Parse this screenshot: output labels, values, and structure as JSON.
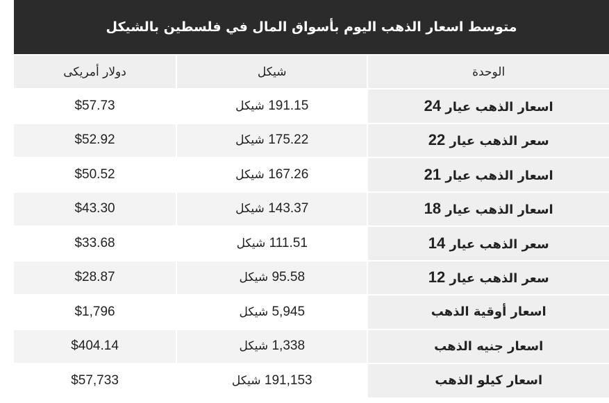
{
  "title": "متوسط اسعار الذهب اليوم بأسواق المال في فلسطين بالشيكل",
  "columns": [
    "الوحدة",
    "شيكل",
    "دولار أمريكى"
  ],
  "rows": [
    {
      "unit": "اسعار الذهب عيار 24",
      "ils": "191.15 شيكل",
      "usd": "$57.73"
    },
    {
      "unit": "سعر الذهب عيار 22",
      "ils": "175.22 شيكل",
      "usd": "$52.92"
    },
    {
      "unit": "اسعار الذهب عيار 21",
      "ils": "167.26 شيكل",
      "usd": "$50.52"
    },
    {
      "unit": "اسعار الذهب عيار 18",
      "ils": "143.37 شيكل",
      "usd": "$43.30"
    },
    {
      "unit": "سعر الذهب عيار 14",
      "ils": "111.51 شيكل",
      "usd": "$33.68"
    },
    {
      "unit": "سعر الذهب عيار 12",
      "ils": "95.58 شيكل",
      "usd": "$28.87"
    },
    {
      "unit": "اسعار أوقية الذهب",
      "ils": "5,945 شيكل",
      "usd": "$1,796"
    },
    {
      "unit": "اسعار جنيه الذهب",
      "ils": "1,338 شيكل",
      "usd": "$404.14"
    },
    {
      "unit": "اسعار كيلو الذهب",
      "ils": "191,153 شيكل",
      "usd": "$57,733"
    }
  ],
  "colors": {
    "title_bg": "#2b2b2b",
    "cell_bg": "#efefef"
  }
}
